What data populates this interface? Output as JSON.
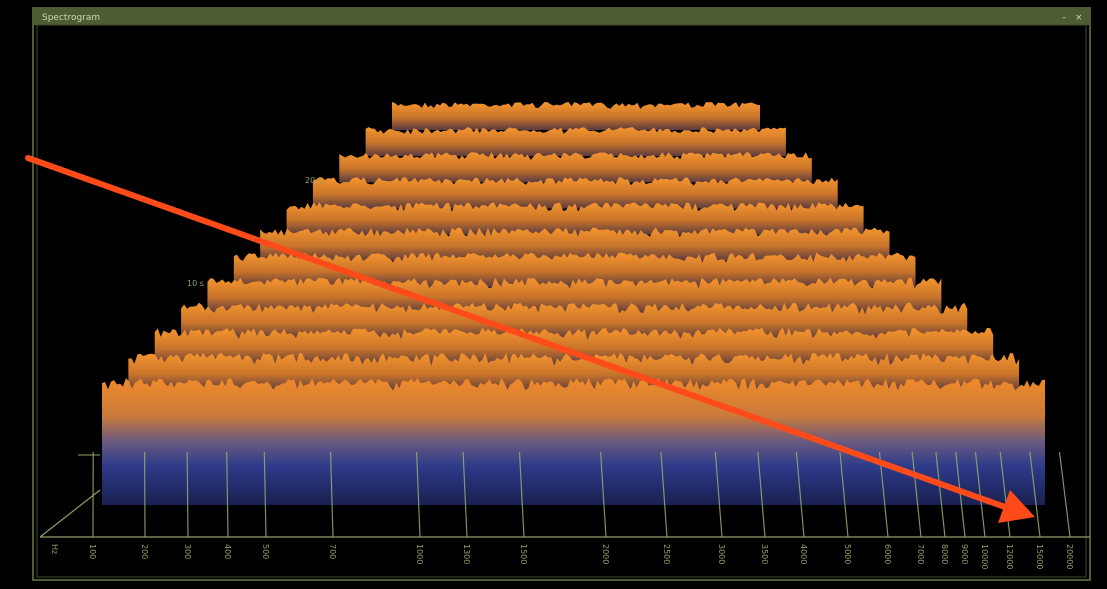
{
  "window": {
    "title": "Spectrogram"
  },
  "axes": {
    "frequency_unit": "Hz",
    "frequency_ticks": [
      "100",
      "200",
      "300",
      "400",
      "500",
      "700",
      "1000",
      "1300",
      "1500",
      "2000",
      "2500",
      "3000",
      "3500",
      "4000",
      "5000",
      "6000",
      "7000",
      "8000",
      "9000",
      "10000",
      "12000",
      "15000",
      "20000"
    ],
    "time_ticks": [
      "10 s",
      "20 s"
    ]
  }
}
